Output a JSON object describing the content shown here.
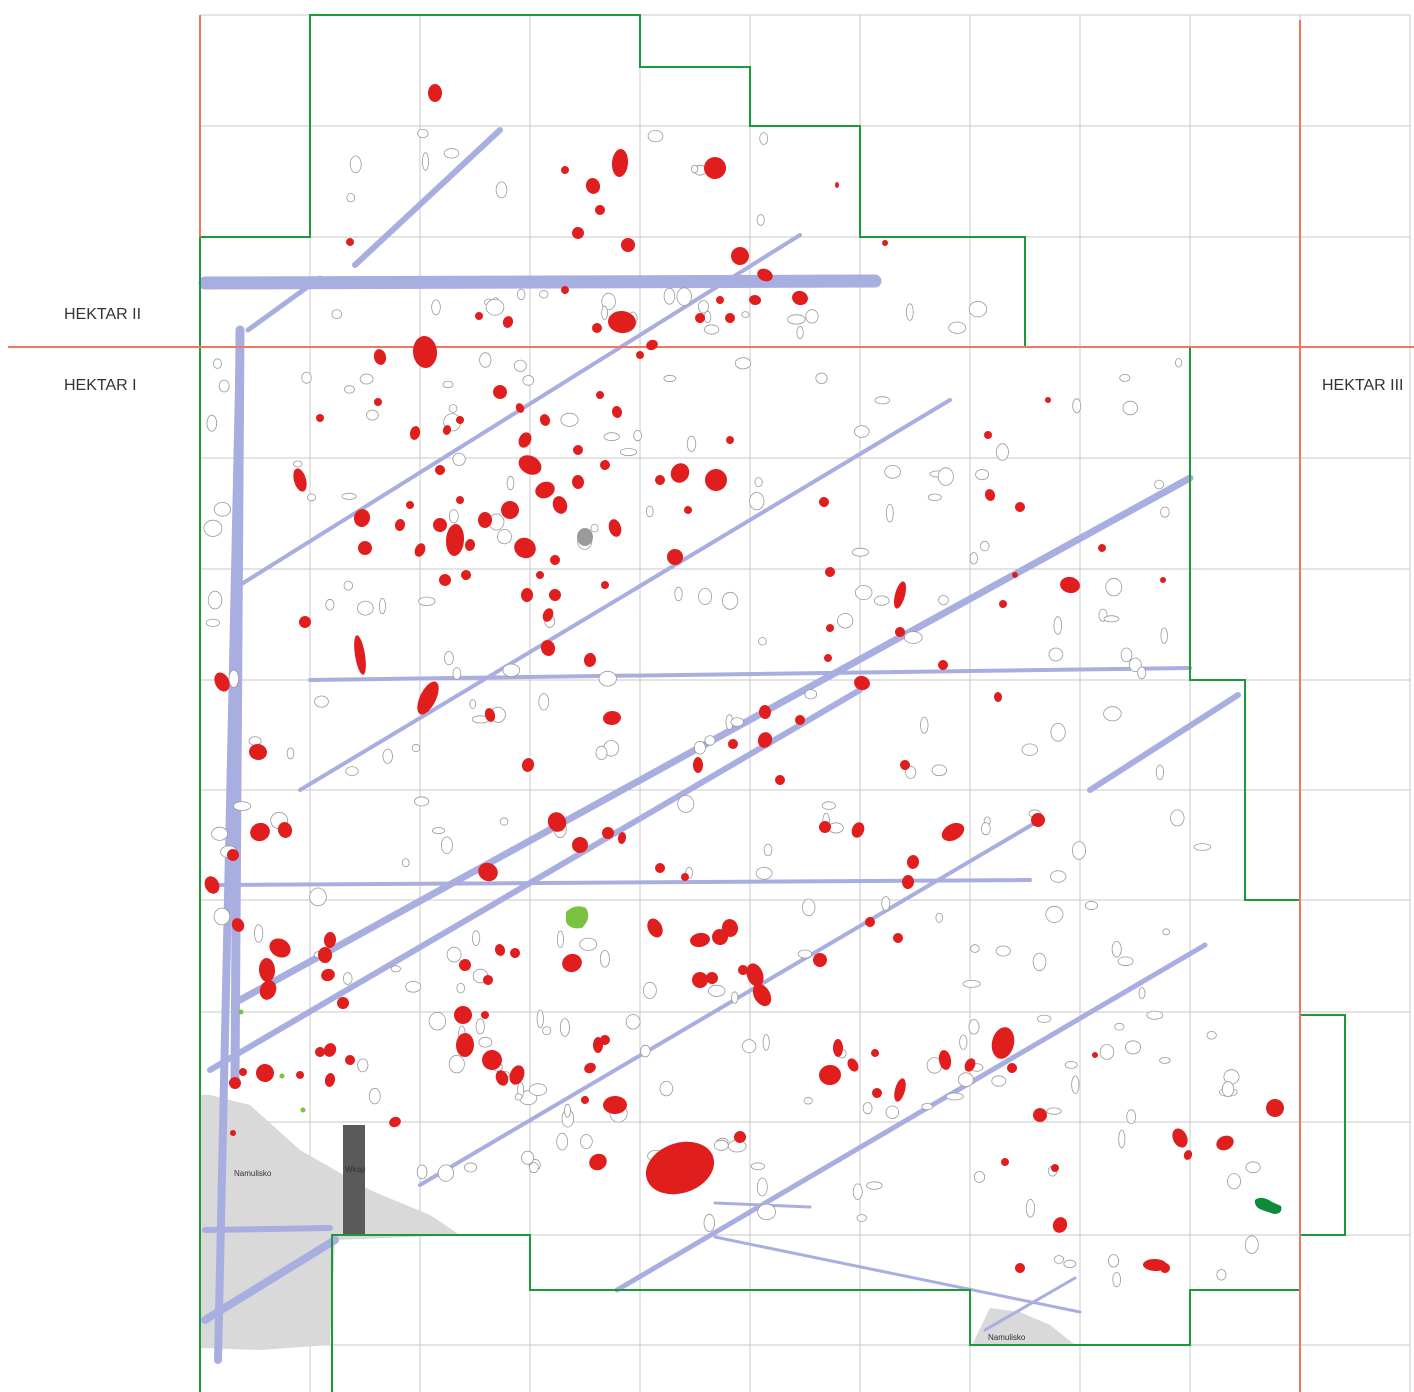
{
  "labels": {
    "hektar_i": "HEKTAR I",
    "hektar_ii": "HEKTAR II",
    "hektar_iii": "HEKTAR III",
    "namulisko_1": "Namulisko",
    "namulisko_2": "Namulisko",
    "wkop": "Wkop"
  },
  "colors": {
    "hectare_lines": "#f07860",
    "excavation_boundary": "#1a9a3a",
    "grid": "#c8c8c8",
    "trenches": "#a9aee0",
    "features_red": "#e01e1e",
    "features_light_green": "#7cc242",
    "features_dark_green": "#0e8a3a",
    "silt_area": "#d9d9d9",
    "trench_dark": "#5a5a5a",
    "outline_features": "#9a9a9a"
  }
}
